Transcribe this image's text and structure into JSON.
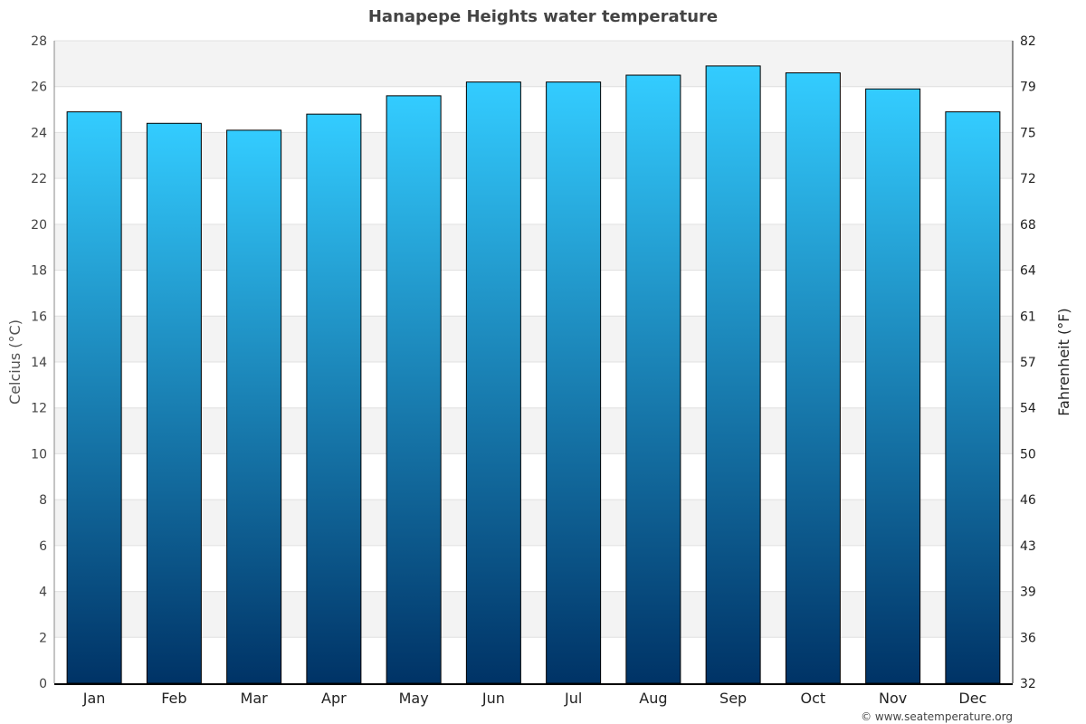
{
  "chart_data": {
    "type": "bar",
    "title": "Hanapepe Heights water temperature",
    "categories": [
      "Jan",
      "Feb",
      "Mar",
      "Apr",
      "May",
      "Jun",
      "Jul",
      "Aug",
      "Sep",
      "Oct",
      "Nov",
      "Dec"
    ],
    "values": [
      24.9,
      24.4,
      24.1,
      24.8,
      25.6,
      26.2,
      26.2,
      26.5,
      26.9,
      26.6,
      25.9,
      24.9
    ],
    "ylabel": "Celcius (°C)",
    "ylabel_right": "Fahrenheit (°F)",
    "ylim": [
      0,
      28
    ],
    "yticks": [
      0,
      2,
      4,
      6,
      8,
      10,
      12,
      14,
      16,
      18,
      20,
      22,
      24,
      26,
      28
    ],
    "yticks_right": [
      32,
      36,
      39,
      43,
      46,
      50,
      54,
      57,
      61,
      64,
      68,
      72,
      75,
      79,
      82
    ],
    "grid": true,
    "bar_colors": {
      "top": "#33ccff",
      "bottom": "#003366"
    },
    "credit": "© www.seatemperature.org"
  }
}
